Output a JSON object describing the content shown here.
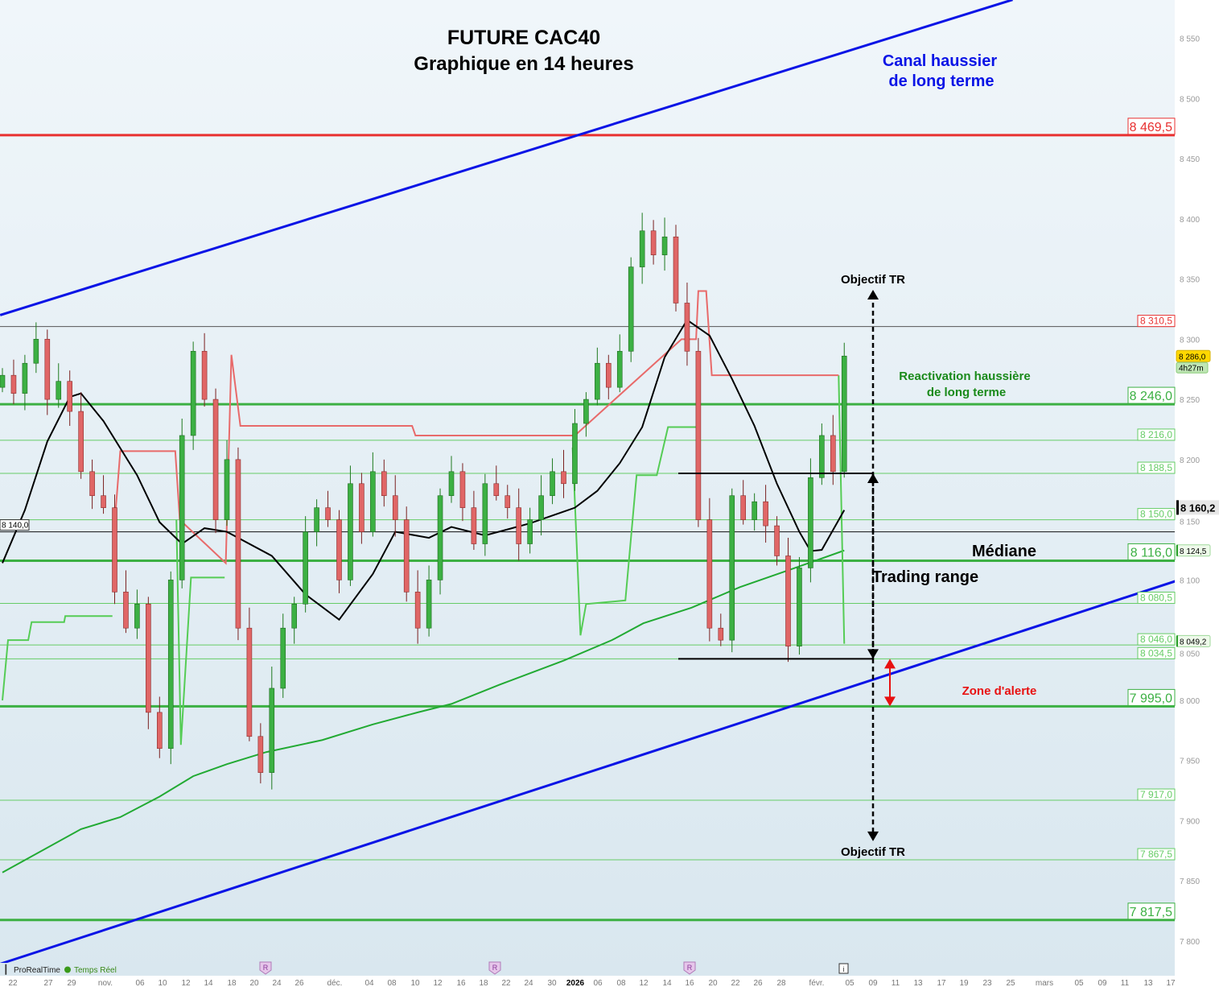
{
  "chart_data": {
    "type": "candlestick",
    "title": "FUTURE CAC40",
    "subtitle": "Graphique en 14 heures",
    "ylim": [
      7780,
      8585
    ],
    "y_ticks": [
      8550,
      8500,
      8450,
      8400,
      8350,
      8300,
      8250,
      8200,
      8150,
      8100,
      8050,
      8000,
      7950,
      7900,
      7850,
      7800
    ],
    "y_tick_labels": [
      "8 550",
      "8 500",
      "8 450",
      "8 400",
      "8 350",
      "8 300",
      "8 250",
      "8 200",
      "8 150",
      "8 100",
      "8 050",
      "8 000",
      "7 950",
      "7 900",
      "7 850",
      "7 800"
    ],
    "x_tick_labels": [
      "22",
      "27",
      "29",
      "nov.",
      "06",
      "10",
      "12",
      "14",
      "18",
      "20",
      "24",
      "26",
      "déc.",
      "04",
      "08",
      "10",
      "12",
      "16",
      "18",
      "22",
      "24",
      "30",
      "2026",
      "06",
      "08",
      "12",
      "14",
      "16",
      "20",
      "22",
      "26",
      "28",
      "févr.",
      "05",
      "09",
      "11",
      "13",
      "17",
      "19",
      "23",
      "25",
      "mars",
      "05",
      "09",
      "11",
      "13",
      "17"
    ],
    "closes": [
      8270,
      8255,
      8280,
      8300,
      8250,
      8265,
      8240,
      8190,
      8170,
      8160,
      8090,
      8060,
      8080,
      7990,
      7960,
      8100,
      8220,
      8290,
      8250,
      8150,
      8200,
      8060,
      7970,
      7940,
      8010,
      8060,
      8080,
      8140,
      8160,
      8150,
      8100,
      8180,
      8140,
      8190,
      8170,
      8150,
      8090,
      8060,
      8100,
      8170,
      8190,
      8160,
      8130,
      8180,
      8170,
      8160,
      8130,
      8150,
      8170,
      8190,
      8180,
      8230,
      8250,
      8280,
      8260,
      8290,
      8360,
      8390,
      8370,
      8385,
      8330,
      8290,
      8150,
      8060,
      8050,
      8170,
      8150,
      8165,
      8145,
      8120,
      8045,
      8110,
      8185,
      8220,
      8190,
      8286
    ],
    "indicators": {
      "black_ma": [
        [
          0,
          8114
        ],
        [
          2,
          8158
        ],
        [
          4,
          8215
        ],
        [
          6,
          8252
        ],
        [
          7,
          8255
        ],
        [
          9,
          8232
        ],
        [
          12,
          8187
        ],
        [
          14,
          8148
        ],
        [
          16,
          8130
        ],
        [
          18,
          8143
        ],
        [
          20,
          8140
        ],
        [
          24,
          8120
        ],
        [
          27,
          8088
        ],
        [
          30,
          8067
        ],
        [
          33,
          8105
        ],
        [
          35,
          8140
        ],
        [
          38,
          8135
        ],
        [
          40,
          8144
        ],
        [
          43,
          8137
        ],
        [
          47,
          8147
        ],
        [
          51,
          8160
        ],
        [
          53,
          8174
        ],
        [
          55,
          8197
        ],
        [
          57,
          8227
        ],
        [
          59,
          8285
        ],
        [
          61,
          8316
        ],
        [
          63,
          8303
        ],
        [
          65,
          8267
        ],
        [
          67,
          8228
        ],
        [
          69,
          8180
        ],
        [
          71,
          8140
        ],
        [
          72,
          8124
        ],
        [
          73,
          8125
        ],
        [
          75,
          8158
        ]
      ],
      "red_stop": [
        [
          10,
          8147
        ],
        [
          10.5,
          8207
        ],
        [
          15.4,
          8207
        ],
        [
          15.8,
          8150
        ],
        [
          19.9,
          8114
        ],
        [
          20.4,
          8287
        ],
        [
          21.2,
          8228
        ],
        [
          36.5,
          8228
        ],
        [
          36.8,
          8220
        ],
        [
          51,
          8220
        ],
        [
          60.5,
          8300
        ],
        [
          61.8,
          8300
        ],
        [
          62,
          8340
        ],
        [
          62.7,
          8340
        ],
        [
          63.2,
          8270
        ],
        [
          74.5,
          8270
        ]
      ],
      "green_stop": [
        [
          [
            0,
            8000
          ],
          [
            0.5,
            8050
          ],
          [
            2.3,
            8050
          ],
          [
            2.6,
            8065
          ],
          [
            5.5,
            8065
          ],
          [
            5.6,
            8070
          ],
          [
            9.8,
            8070
          ]
        ],
        [
          [
            15.5,
            8150
          ],
          [
            15.9,
            7963
          ],
          [
            16.8,
            8102
          ],
          [
            19.8,
            8102
          ]
        ],
        [
          [
            50.8,
            8210
          ],
          [
            51.5,
            8054
          ],
          [
            52,
            8080
          ],
          [
            55.5,
            8083
          ],
          [
            56.5,
            8187
          ],
          [
            58.3,
            8187
          ],
          [
            58.8,
            8207
          ],
          [
            59.3,
            8227
          ],
          [
            61.8,
            8227
          ]
        ],
        [
          [
            74.5,
            8270
          ],
          [
            75,
            8047
          ]
        ]
      ],
      "long_ma": [
        [
          0,
          7857
        ],
        [
          7,
          7893
        ],
        [
          10.5,
          7903
        ],
        [
          14,
          7920
        ],
        [
          17,
          7937
        ],
        [
          20,
          7947
        ],
        [
          23.5,
          7957
        ],
        [
          28.5,
          7967
        ],
        [
          33,
          7980
        ],
        [
          37,
          7990
        ],
        [
          40,
          7997
        ],
        [
          44.3,
          8013
        ],
        [
          50,
          8033
        ],
        [
          54.3,
          8050
        ],
        [
          57.1,
          8064
        ],
        [
          61.4,
          8077
        ],
        [
          65.7,
          8094
        ],
        [
          70,
          8108
        ],
        [
          75,
          8124.5
        ]
      ]
    },
    "channel": {
      "upper": [
        [
          -0.2,
          8320
        ],
        [
          90,
          8582
        ]
      ],
      "lower": [
        [
          -0.2,
          7781
        ],
        [
          104.5,
          8099
        ]
      ],
      "color": "#0a14e6"
    },
    "levels": [
      {
        "value": 8469.5,
        "label": "8 469,5",
        "kind": "major",
        "color": "#e83030"
      },
      {
        "value": 8310.5,
        "label": "8 310,5",
        "kind": "ref",
        "color": "#e83030"
      },
      {
        "value": 8246.0,
        "label": "8 246,0",
        "kind": "major",
        "color": "#3cb043"
      },
      {
        "value": 8216.0,
        "label": "8 216,0",
        "kind": "minor",
        "color": "#66cc66"
      },
      {
        "value": 8188.5,
        "label": "8 188,5",
        "kind": "minor",
        "color": "#66cc66"
      },
      {
        "value": 8150.0,
        "label": "8 150,0",
        "kind": "minor",
        "color": "#66cc66"
      },
      {
        "value": 8116.0,
        "label": "8 116,0",
        "kind": "major",
        "color": "#3cb043"
      },
      {
        "value": 8080.5,
        "label": "8 080,5",
        "kind": "minor",
        "color": "#66cc66"
      },
      {
        "value": 8046.0,
        "label": "8 046,0",
        "kind": "minor",
        "color": "#66cc66"
      },
      {
        "value": 8034.5,
        "label": "8 034,5",
        "kind": "minor",
        "color": "#66cc66"
      },
      {
        "value": 7995.0,
        "label": "7 995,0",
        "kind": "major",
        "color": "#3cb043"
      },
      {
        "value": 7917.0,
        "label": "7 917,0",
        "kind": "minor",
        "color": "#66cc66"
      },
      {
        "value": 7867.5,
        "label": "7 867,5",
        "kind": "minor",
        "color": "#66cc66"
      },
      {
        "value": 7817.5,
        "label": "7 817,5",
        "kind": "major",
        "color": "#3cb043"
      }
    ],
    "median_line": {
      "value": 8140.0,
      "label": "8 140,0"
    },
    "range": {
      "top": 8188.5,
      "bottom": 8034.5,
      "target_up": 8341,
      "target_down": 7883,
      "alert_top": 8034.5,
      "alert_bottom": 7995
    },
    "price_tags": {
      "current": {
        "value": 8160.2,
        "label": "8 160,2"
      },
      "last": {
        "value": 8286.0,
        "label": "8 286,0",
        "color": "#ffd700"
      },
      "countdown": "4h27m",
      "ma1": {
        "value": 8124.5,
        "label": "8 124,5"
      },
      "ma2": {
        "value": 8049.2,
        "label": "8 049,2"
      }
    },
    "annotations": {
      "channel": [
        "Canal haussier",
        "de long terme"
      ],
      "objectif_top": "Objectif TR",
      "objectif_bottom": "Objectif TR",
      "reactivation": [
        "Reactivation haussière",
        "de long terme"
      ],
      "mediane": "Médiane",
      "trading_range": "Trading range",
      "zone_alerte": "Zone d'alerte"
    },
    "event_markers": [
      "R",
      "R",
      "R",
      "i"
    ],
    "colors": {
      "up": "#3cb043",
      "down": "#e06666",
      "black_ma": "#000000",
      "red_stop": "#e86a6a",
      "green_stop": "#55cc55",
      "long_ma": "#22aa33"
    }
  },
  "footer": {
    "brand": "ProRealTime",
    "status": "Temps Réel"
  }
}
